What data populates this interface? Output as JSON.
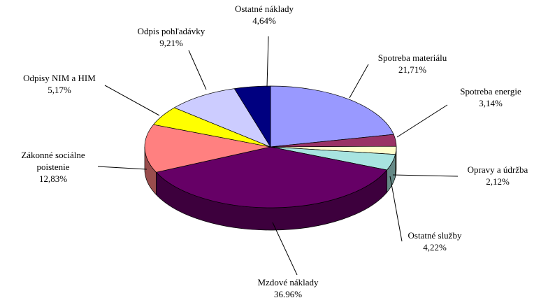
{
  "chart_data": {
    "type": "pie3d",
    "categories": [
      "Spotreba materiálu",
      "Spotreba energie",
      "Opravy a údržba",
      "Ostatné služby",
      "Mzdové náklady",
      "Zákonné sociálne poistenie",
      "Odpisy NIM a HIM",
      "Odpis pohľadávky",
      "Ostatné náklady"
    ],
    "values": [
      21.71,
      3.14,
      2.12,
      4.22,
      36.96,
      12.83,
      5.17,
      9.21,
      4.64
    ],
    "value_labels": [
      "21,71%",
      "3,14%",
      "2,12%",
      "4,22%",
      "36.96%",
      "12,83%",
      "5,17%",
      "9,21%",
      "4,64%"
    ],
    "colors": [
      "#9999ff",
      "#993366",
      "#ffffcc",
      "#a8e4e0",
      "#660066",
      "#ff8080",
      "#ffff00",
      "#ccccff",
      "#000080"
    ]
  }
}
